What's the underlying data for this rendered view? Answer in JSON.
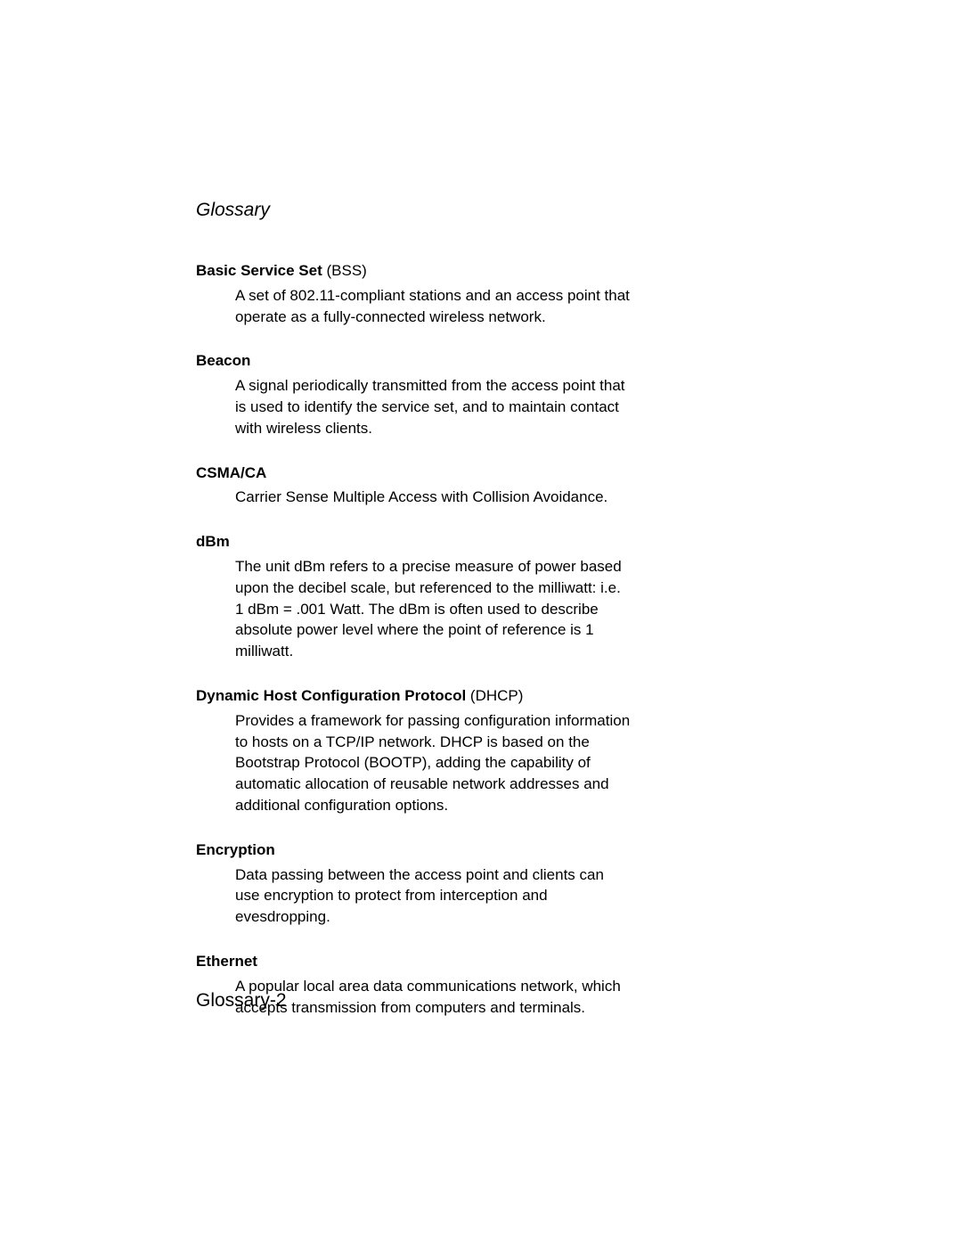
{
  "header": "Glossary",
  "entries": [
    {
      "term_bold": "Basic Service Set",
      "term_normal": " (BSS)",
      "definition": "A set of 802.11-compliant stations and an access point that operate as a fully-connected wireless network."
    },
    {
      "term_bold": "Beacon",
      "term_normal": "",
      "definition": "A signal periodically transmitted from the access point that is used to identify the service set, and to maintain contact with wireless clients."
    },
    {
      "term_bold": "CSMA/CA",
      "term_normal": "",
      "definition": "Carrier Sense Multiple Access with Collision Avoidance."
    },
    {
      "term_bold": "dBm",
      "term_normal": "",
      "definition": "The unit dBm refers to a precise measure of power based upon the decibel scale, but referenced to the milliwatt: i.e. 1 dBm = .001 Watt. The dBm is often used to describe absolute power level where the point of reference is 1 milliwatt."
    },
    {
      "term_bold": "Dynamic Host Configuration Protocol",
      "term_normal": " (DHCP)",
      "definition": "Provides a framework for passing configuration information to hosts on a TCP/IP network. DHCP is based on the Bootstrap Protocol (BOOTP), adding the capability of automatic allocation of reusable network addresses and additional configuration options."
    },
    {
      "term_bold": "Encryption",
      "term_normal": "",
      "definition": "Data passing between the access point and clients can use encryption to protect from interception and evesdropping."
    },
    {
      "term_bold": "Ethernet",
      "term_normal": "",
      "definition": "A popular local area data communications network, which accepts transmission from computers and terminals."
    }
  ],
  "footer": "Glossary-2"
}
